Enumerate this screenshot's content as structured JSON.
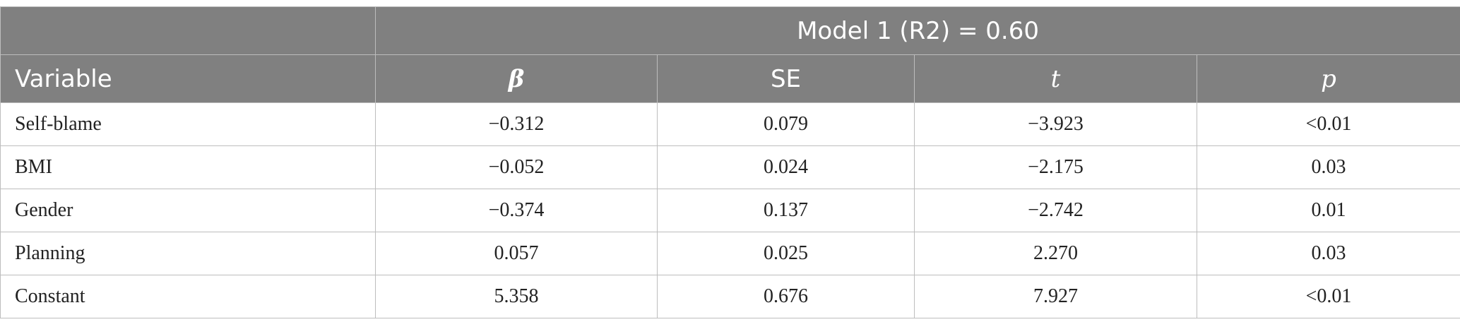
{
  "header": {
    "model_title": "Model 1 (R2) = 0.60",
    "columns": [
      "Variable",
      "β",
      "SE",
      "t",
      "p"
    ]
  },
  "rows": [
    {
      "variable": "Self-blame",
      "beta": "−0.312",
      "se": "0.079",
      "t": "−3.923",
      "p": "<0.01"
    },
    {
      "variable": "BMI",
      "beta": "−0.052",
      "se": "0.024",
      "t": "−2.175",
      "p": "0.03"
    },
    {
      "variable": "Gender",
      "beta": "−0.374",
      "se": "0.137",
      "t": "−2.742",
      "p": "0.01"
    },
    {
      "variable": "Planning",
      "beta": "0.057",
      "se": "0.025",
      "t": "2.270",
      "p": "0.03"
    },
    {
      "variable": "Constant",
      "beta": "5.358",
      "se": "0.676",
      "t": "7.927",
      "p": "<0.01"
    }
  ]
}
